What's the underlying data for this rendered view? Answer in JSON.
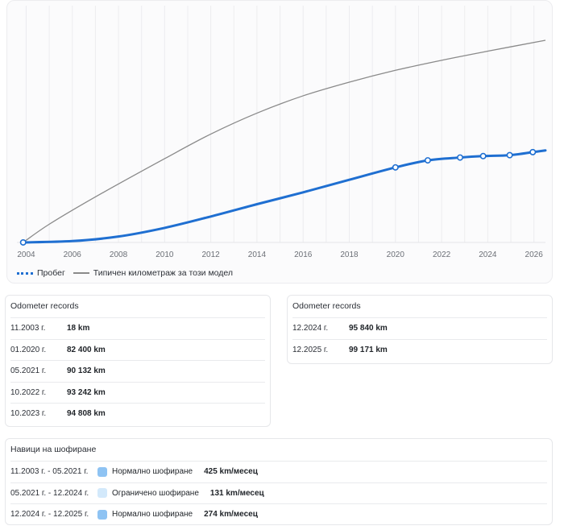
{
  "chart_data": {
    "type": "line",
    "x_ticks": [
      "2004",
      "2006",
      "2008",
      "2010",
      "2012",
      "2014",
      "2016",
      "2018",
      "2020",
      "2022",
      "2024",
      "2026"
    ],
    "xlim": [
      2003.6,
      2026.5
    ],
    "ylim": [
      0,
      260000
    ],
    "grid": "vertical",
    "legend_position": "bottom-left",
    "series": [
      {
        "name": "Пробег",
        "color": "#1f6fd1",
        "style": "thick-with-markers",
        "points": [
          [
            2003.87,
            18
          ],
          [
            2020.0,
            82400
          ],
          [
            2021.4,
            90132
          ],
          [
            2022.8,
            93242
          ],
          [
            2023.8,
            94808
          ],
          [
            2024.95,
            95840
          ],
          [
            2025.95,
            99171
          ]
        ],
        "curve": [
          [
            2003.87,
            18
          ],
          [
            2006,
            1500
          ],
          [
            2008,
            6500
          ],
          [
            2010,
            16000
          ],
          [
            2012,
            28500
          ],
          [
            2014,
            42000
          ],
          [
            2016,
            55000
          ],
          [
            2018,
            68800
          ],
          [
            2020,
            82400
          ],
          [
            2021.4,
            90132
          ],
          [
            2022.8,
            93242
          ],
          [
            2023.8,
            94808
          ],
          [
            2024.95,
            95840
          ],
          [
            2025.95,
            99171
          ],
          [
            2026.5,
            101000
          ]
        ]
      },
      {
        "name": "Типичен километраж за този модел",
        "color": "#8a8a8a",
        "style": "thin",
        "curve": [
          [
            2003.87,
            0
          ],
          [
            2005,
            20000
          ],
          [
            2007,
            50000
          ],
          [
            2010,
            92000
          ],
          [
            2012,
            119000
          ],
          [
            2014,
            142000
          ],
          [
            2016,
            161000
          ],
          [
            2018,
            176000
          ],
          [
            2020,
            189000
          ],
          [
            2022,
            200000
          ],
          [
            2024,
            210000
          ],
          [
            2026.5,
            222000
          ]
        ]
      }
    ]
  },
  "odometer_left": {
    "title": "Odometer records",
    "rows": [
      {
        "date": "11.2003 г.",
        "km": "18 km"
      },
      {
        "date": "01.2020 г.",
        "km": "82 400 km"
      },
      {
        "date": "05.2021 г.",
        "km": "90 132 km"
      },
      {
        "date": "10.2022 г.",
        "km": "93 242 km"
      },
      {
        "date": "10.2023 г.",
        "km": "94 808 km"
      }
    ]
  },
  "odometer_right": {
    "title": "Odometer records",
    "rows": [
      {
        "date": "12.2024 г.",
        "km": "95 840 km"
      },
      {
        "date": "12.2025 г.",
        "km": "99 171 km"
      }
    ]
  },
  "habits": {
    "title": "Навици на шофиране",
    "rows": [
      {
        "period": "11.2003 г. - 05.2021 г.",
        "label": "Нормално шофиране",
        "rate": "425 km/месец",
        "color": "#8ec3f3"
      },
      {
        "period": "05.2021 г. - 12.2024 г.",
        "label": "Ограничено шофиране",
        "rate": "131 km/месец",
        "color": "#d3e9fb"
      },
      {
        "period": "12.2024 г. - 12.2025 г.",
        "label": "Нормално шофиране",
        "rate": "274 km/месец",
        "color": "#8ec3f3"
      }
    ]
  }
}
